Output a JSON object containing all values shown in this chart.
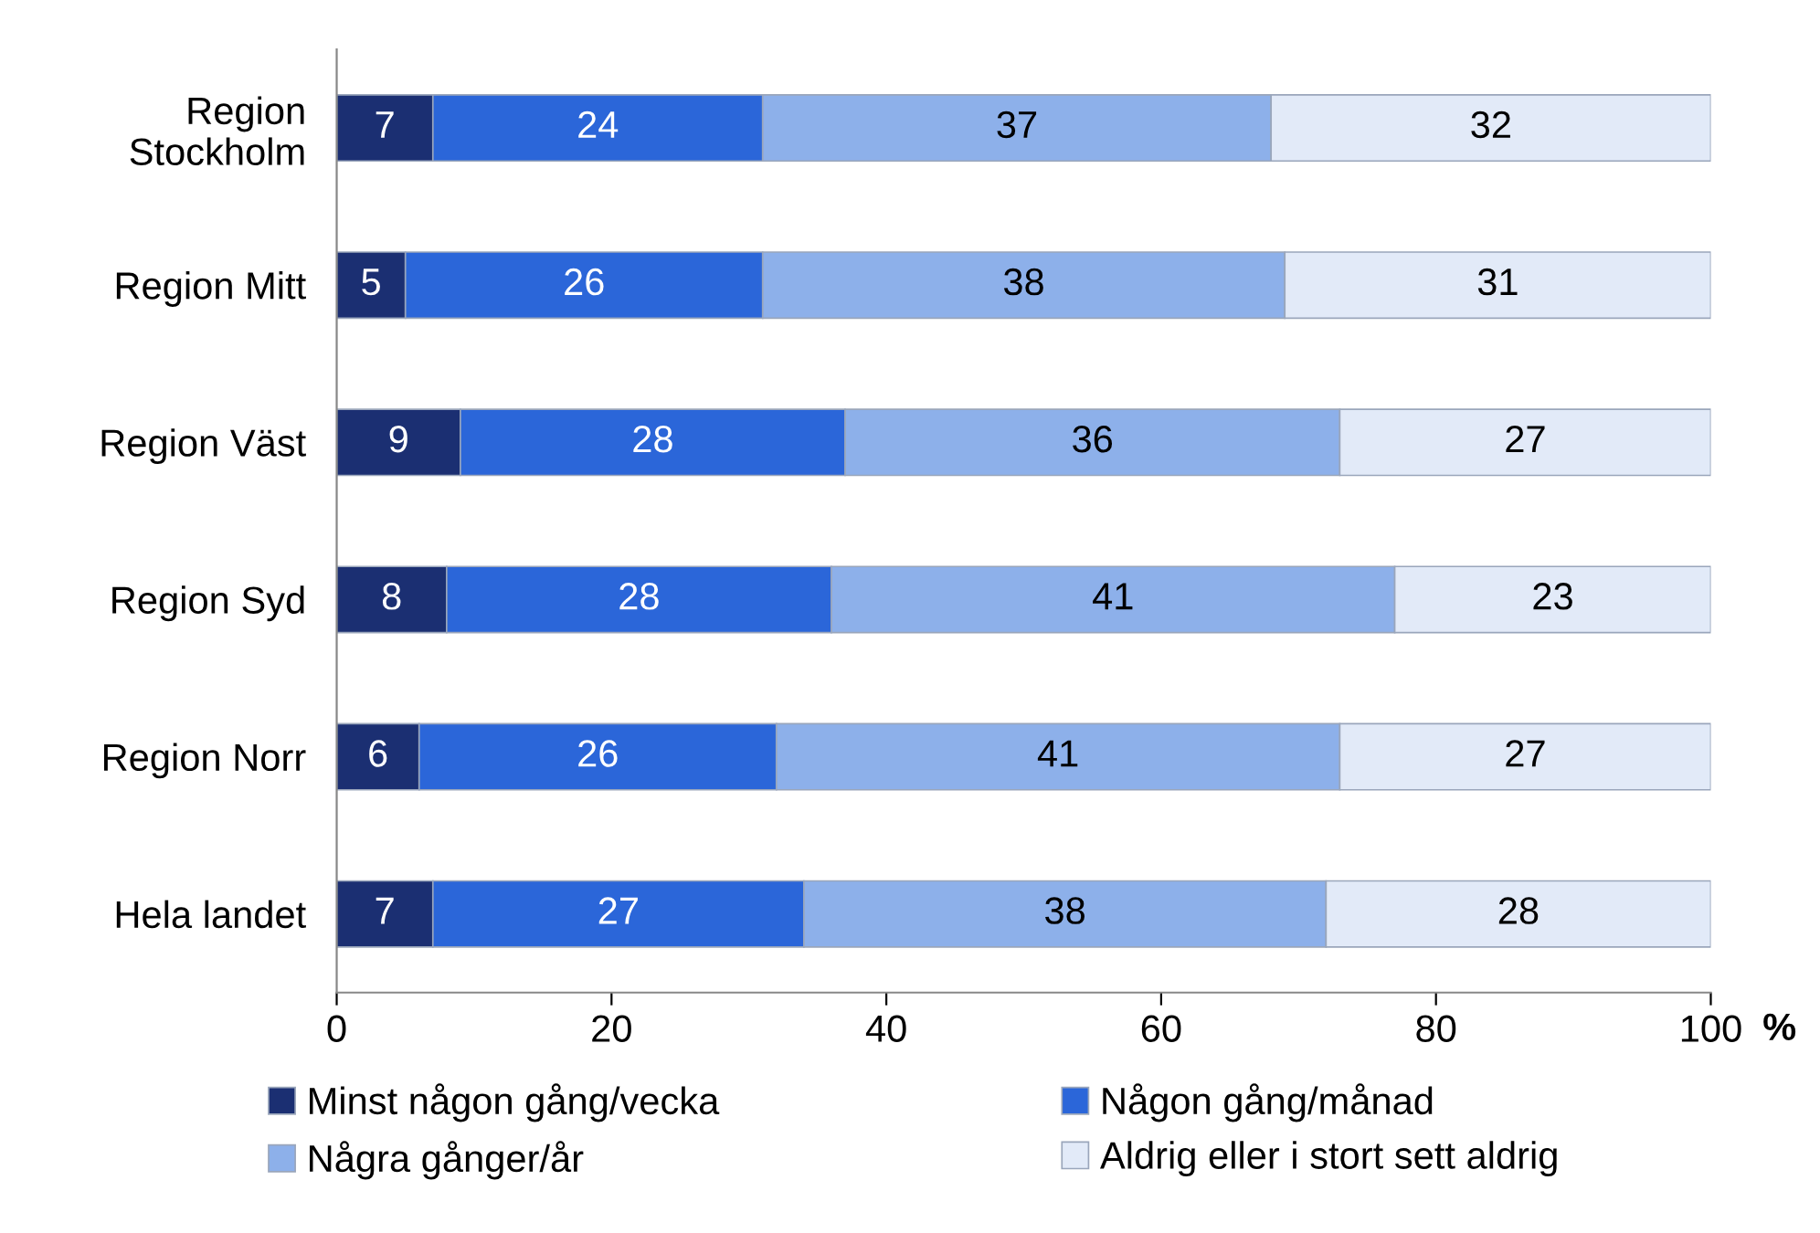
{
  "chart_data": {
    "type": "bar",
    "orientation": "horizontal",
    "stacked": true,
    "categories": [
      "Region\nStockholm",
      "Region Mitt",
      "Region Väst",
      "Region Syd",
      "Region Norr",
      "Hela landet"
    ],
    "series": [
      {
        "name": "Minst någon gång/vecka",
        "color": "#1b2f72",
        "values": [
          7,
          5,
          9,
          8,
          6,
          7
        ]
      },
      {
        "name": "Någon gång/månad",
        "color": "#2b66d9",
        "values": [
          24,
          26,
          28,
          28,
          26,
          27
        ]
      },
      {
        "name": "Några gånger/år",
        "color": "#8db0ea",
        "values": [
          37,
          38,
          36,
          41,
          41,
          38
        ]
      },
      {
        "name": "Aldrig eller i stort sett aldrig",
        "color": "#e2eaf8",
        "values": [
          32,
          31,
          27,
          23,
          27,
          28
        ]
      }
    ],
    "xlim": [
      0,
      100
    ],
    "xticks": [
      0,
      20,
      40,
      60,
      80,
      100
    ],
    "xlabel": "%",
    "data_labels": true,
    "grid": false,
    "legend": "bottom"
  }
}
